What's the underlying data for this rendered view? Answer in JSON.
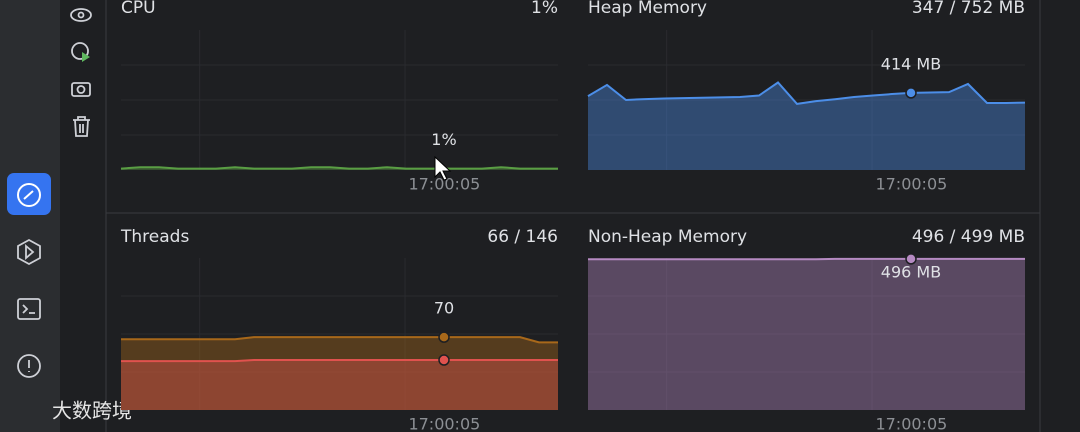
{
  "panels": [
    {
      "title": "CPU",
      "summary": "1%",
      "time_label": "17:00:05",
      "hover_label": "1%",
      "chart": {
        "type": "area",
        "ylim": [
          0,
          100
        ],
        "series": [
          {
            "color": "#5a9e44",
            "values": [
              1,
              2,
              2,
              1,
              1,
              1,
              2,
              1,
              1,
              1,
              2,
              2,
              1,
              1,
              2,
              1,
              1,
              1,
              1,
              1,
              2,
              1,
              1,
              1
            ]
          }
        ]
      }
    },
    {
      "title": "Heap Memory",
      "summary": "347 / 752 MB",
      "time_label": "17:00:05",
      "hover_label": "414 MB",
      "chart": {
        "type": "area",
        "ylim": [
          0,
          752
        ],
        "series": [
          {
            "color": "#4c8ee8",
            "values": [
              397,
              457,
              376,
              381,
              384,
              386,
              388,
              390,
              392,
              400,
              470,
              355,
              370,
              380,
              392,
              400,
              408,
              414,
              416,
              418,
              462,
              360,
              360,
              362
            ]
          }
        ]
      }
    },
    {
      "title": "Threads",
      "summary": "66 / 146",
      "time_label": "17:00:05",
      "hover_label": "70",
      "chart": {
        "type": "area",
        "ylim": [
          0,
          146
        ],
        "series": [
          {
            "color": "#a8681a",
            "values": [
              68,
              68,
              68,
              68,
              68,
              68,
              68,
              70,
              70,
              70,
              70,
              70,
              70,
              70,
              70,
              70,
              70,
              70,
              70,
              70,
              70,
              70,
              65,
              65
            ]
          },
          {
            "color": "#e0524e",
            "values": [
              47,
              47,
              47,
              47,
              47,
              47,
              47,
              48,
              48,
              48,
              48,
              48,
              48,
              48,
              48,
              48,
              48,
              48,
              48,
              48,
              48,
              48,
              48,
              48
            ]
          }
        ]
      }
    },
    {
      "title": "Non-Heap Memory",
      "summary": "496 / 499 MB",
      "time_label": "17:00:05",
      "hover_label": "496 MB",
      "chart": {
        "type": "area",
        "ylim": [
          0,
          499
        ],
        "series": [
          {
            "color": "#b58ac2",
            "values": [
              495,
              495,
              495,
              495,
              495,
              495,
              495,
              495,
              495,
              495,
              495,
              495,
              495,
              496,
              496,
              496,
              496,
              496,
              496,
              496,
              496,
              496,
              496,
              496
            ]
          }
        ]
      }
    }
  ],
  "watermark": "大数跨境"
}
